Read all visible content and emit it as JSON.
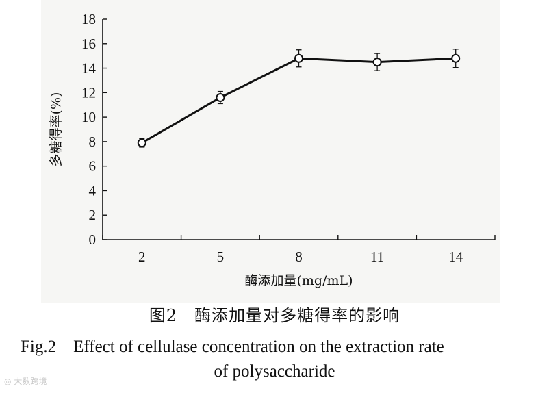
{
  "chart_data": {
    "type": "line",
    "x": [
      2,
      5,
      8,
      11,
      14
    ],
    "categories": [
      "2",
      "5",
      "8",
      "11",
      "14"
    ],
    "series": [
      {
        "values": [
          7.9,
          11.6,
          14.8,
          14.5,
          14.8
        ],
        "error": [
          0.35,
          0.5,
          0.7,
          0.7,
          0.75
        ]
      }
    ],
    "xlabel": "酶添加量(mg/mL)",
    "ylabel": "多糖得率(%)",
    "ylim": [
      0,
      18
    ],
    "yticks": [
      0,
      2,
      4,
      6,
      8,
      10,
      12,
      14,
      16,
      18
    ],
    "grid": false,
    "marker": "open-circle"
  },
  "caption": {
    "cn": "图2　酶添加量对多糖得率的影响",
    "en_line1": "Fig.2　Effect of cellulase concentration on the extraction rate",
    "en_line2": "of polysaccharide"
  },
  "watermark": "大数跨境"
}
